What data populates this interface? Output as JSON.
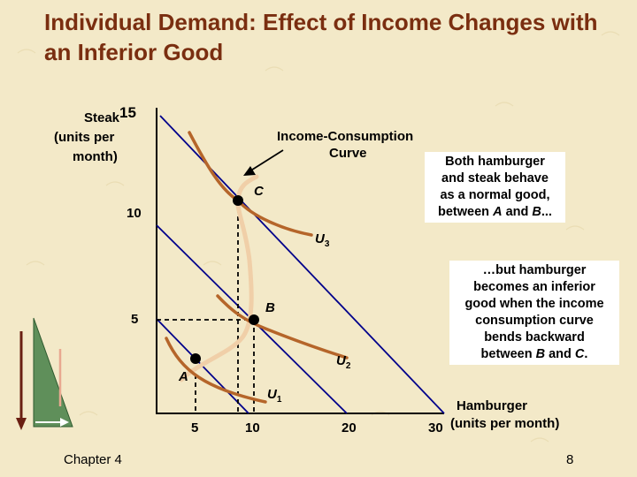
{
  "title": "Individual Demand: Effect of Income Changes with an Inferior Good",
  "colors": {
    "title": "#7a2e10",
    "curve": "#b5652a",
    "icc": "#f0cfa8",
    "budget": "#00008b"
  },
  "axes": {
    "y_label_line1": "Steak",
    "y_label_line2": "(units per",
    "y_label_line3": "month)",
    "x_label_line1": "Hamburger",
    "x_label_line2": "(units per month)",
    "y_ticks": [
      "15",
      "10",
      "5"
    ],
    "x_ticks": [
      "5",
      "10",
      "20",
      "30"
    ]
  },
  "points": {
    "a": "A",
    "b": "B",
    "c": "C"
  },
  "curves": {
    "u1": {
      "letter": "U",
      "sub": "1"
    },
    "u2": {
      "letter": "U",
      "sub": "2"
    },
    "u3": {
      "letter": "U",
      "sub": "3"
    }
  },
  "icc_label": {
    "line1": "Income-Consumption",
    "line2": "Curve"
  },
  "note1": {
    "l1": "Both hamburger",
    "l2": "and steak behave",
    "l3": "as a normal good,",
    "l4_pre": "between ",
    "l4_a": "A",
    "l4_mid": " and ",
    "l4_b": "B",
    "l4_post": "..."
  },
  "note2": {
    "l1": "…but hamburger",
    "l2": "becomes an inferior",
    "l3": "good when the income",
    "l4": "consumption curve",
    "l5": "bends backward",
    "l6_pre": "between ",
    "l6_b": "B",
    "l6_mid": " and ",
    "l6_c": "C",
    "l6_post": "."
  },
  "footer": {
    "chapter": "Chapter 4",
    "page": "8"
  }
}
